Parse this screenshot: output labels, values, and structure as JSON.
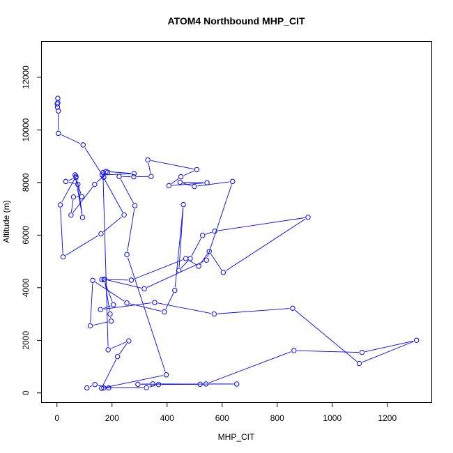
{
  "chart_data": {
    "type": "scatter",
    "title": "ATOM4 Northbound MHP_CIT",
    "xlabel": "MHP_CIT",
    "ylabel": "Altitude (m)",
    "xlim": [
      -55,
      1360
    ],
    "ylim": [
      -350,
      13350
    ],
    "x_ticks": [
      0,
      200,
      400,
      600,
      800,
      1000,
      1200
    ],
    "y_ticks": [
      0,
      2000,
      4000,
      6000,
      8000,
      10000,
      12000
    ],
    "grid": false,
    "legend": "none",
    "point_color": "#0000ff",
    "line_color": "#0000ff",
    "x": [
      109,
      138,
      188,
      170,
      325,
      369,
      520,
      348,
      294,
      653,
      541,
      861,
      1108,
      1306,
      1098,
      856,
      571,
      355,
      158,
      205,
      171,
      163,
      270,
      468,
      515,
      553,
      604,
      912,
      573,
      529,
      484,
      443,
      459,
      428,
      390,
      254,
      130,
      121,
      197,
      193,
      173,
      317,
      543,
      638,
      499,
      447,
      545,
      407,
      450,
      508,
      330,
      342,
      279,
      226,
      283,
      254,
      397,
      162,
      220,
      261,
      186,
      167,
      184,
      137,
      51,
      60,
      90,
      69,
      32,
      76,
      93,
      66,
      69,
      12,
      22,
      160,
      244,
      164,
      280,
      178,
      170,
      95,
      5,
      5,
      2,
      1,
      3,
      3
    ],
    "y": [
      190,
      320,
      190,
      190,
      195,
      320,
      330,
      345,
      330,
      340,
      340,
      1610,
      1540,
      2000,
      1120,
      3220,
      3000,
      3440,
      3170,
      3350,
      4310,
      4310,
      4290,
      5110,
      4820,
      5380,
      4580,
      6680,
      6150,
      5990,
      5110,
      4660,
      7160,
      3900,
      3080,
      3420,
      4280,
      2550,
      2730,
      3000,
      4320,
      3960,
      5050,
      8040,
      7850,
      8010,
      7990,
      7880,
      8220,
      8490,
      8860,
      8230,
      8220,
      8230,
      7120,
      5260,
      690,
      180,
      1380,
      1980,
      1640,
      8380,
      8390,
      7930,
      6760,
      7450,
      7460,
      8190,
      8040,
      7930,
      6670,
      8290,
      8230,
      7150,
      5170,
      6050,
      6770,
      8290,
      8340,
      8420,
      8200,
      9430,
      9870,
      10720,
      10870,
      10990,
      11030,
      11200
    ]
  }
}
